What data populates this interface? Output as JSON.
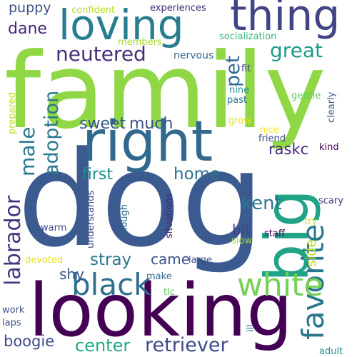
{
  "words": {
    "family": {
      "text": "family",
      "color": "#8fd744"
    },
    "dog": {
      "text": "dog",
      "color": "#3b5a8f"
    },
    "looking": {
      "text": "looking",
      "color": "#440154"
    },
    "big": {
      "text": "big",
      "color": "#20a386"
    },
    "right": {
      "text": "right",
      "color": "#31688e"
    },
    "loving": {
      "text": "loving",
      "color": "#287d8e"
    },
    "thing": {
      "text": "thing",
      "color": "#414487"
    },
    "favorite": {
      "text": "favorite",
      "color": "#2a788e"
    },
    "white": {
      "text": "white",
      "color": "#75d054"
    },
    "black": {
      "text": "black",
      "color": "#2d708e"
    },
    "retriever": {
      "text": "retriever",
      "color": "#3e4a89"
    },
    "labrador": {
      "text": "labrador",
      "color": "#46327e"
    },
    "adoption": {
      "text": "adoption",
      "color": "#2a788e"
    },
    "neutered": {
      "text": "neutered",
      "color": "#472d7b"
    },
    "great": {
      "text": "great",
      "color": "#1f9a8a"
    },
    "pet": {
      "text": "pet",
      "color": "#31688e"
    },
    "male": {
      "text": "male",
      "color": "#2a788e"
    },
    "dane": {
      "text": "dane",
      "color": "#482576"
    },
    "center": {
      "text": "center",
      "color": "#22a884"
    },
    "kent": {
      "text": "kent",
      "color": "#2a788e"
    },
    "stray": {
      "text": "stray",
      "color": "#2a788e"
    },
    "sweet": {
      "text": "sweet",
      "color": "#38598c"
    },
    "much": {
      "text": "much",
      "color": "#3b528b"
    },
    "first": {
      "text": "first",
      "color": "#21908d"
    },
    "home": {
      "text": "home",
      "color": "#2c728e"
    },
    "boogie": {
      "text": "boogie",
      "color": "#3e4a89"
    },
    "raskc": {
      "text": "raskc",
      "color": "#482878"
    },
    "came": {
      "text": "came",
      "color": "#3b528b"
    },
    "shy": {
      "text": "shy",
      "color": "#3b528b"
    },
    "side": {
      "text": "side",
      "color": "#b8de29"
    },
    "bit": {
      "text": "bit",
      "color": "#414487"
    },
    "puppy": {
      "text": "puppy",
      "color": "#3b528b"
    },
    "confident": {
      "text": "confident",
      "color": "#b5de2b"
    },
    "experiences": {
      "text": "experiences",
      "color": "#482878"
    },
    "socialization": {
      "text": "socialization",
      "color": "#35b779"
    },
    "members": {
      "text": "members",
      "color": "#a8db34"
    },
    "nervous": {
      "text": "nervous",
      "color": "#31688e"
    },
    "fit": {
      "text": "fit",
      "color": "#443a83"
    },
    "nine": {
      "text": "nine",
      "color": "#21918c"
    },
    "past": {
      "text": "past",
      "color": "#2c728e"
    },
    "gentle": {
      "text": "gentle",
      "color": "#5ec962"
    },
    "clearly": {
      "text": "clearly",
      "color": "#3b528b"
    },
    "prepared": {
      "text": "prepared",
      "color": "#b5de2b"
    },
    "grow": {
      "text": "grow",
      "color": "#dde318"
    },
    "nice": {
      "text": "nice",
      "color": "#fde725"
    },
    "friend": {
      "text": "friend",
      "color": "#3e4a89"
    },
    "kind": {
      "text": "kind",
      "color": "#440154"
    },
    "scary": {
      "text": "scary",
      "color": "#453781"
    },
    "try": {
      "text": "try",
      "color": "#c2df23"
    },
    "staff": {
      "text": "staff",
      "color": "#440154"
    },
    "slow": {
      "text": "slow",
      "color": "#a8db34"
    },
    "large": {
      "text": "large",
      "color": "#3b528b"
    },
    "situations": {
      "text": "situations",
      "color": "#482878"
    },
    "understands": {
      "text": "understands",
      "color": "#3e4a89"
    },
    "though": {
      "text": "though",
      "color": "#31688e"
    },
    "warm": {
      "text": "warm",
      "color": "#3e4a89"
    },
    "devoted": {
      "text": "devoted",
      "color": "#e5e419"
    },
    "make": {
      "text": "make",
      "color": "#31688e"
    },
    "tlc": {
      "text": "tlc",
      "color": "#5ec962"
    },
    "ill": {
      "text": "ill",
      "color": "#2c728e"
    },
    "work": {
      "text": "work",
      "color": "#3b528b"
    },
    "laps": {
      "text": "laps",
      "color": "#3b528b"
    },
    "adult": {
      "text": "adult",
      "color": "#21918c"
    }
  }
}
